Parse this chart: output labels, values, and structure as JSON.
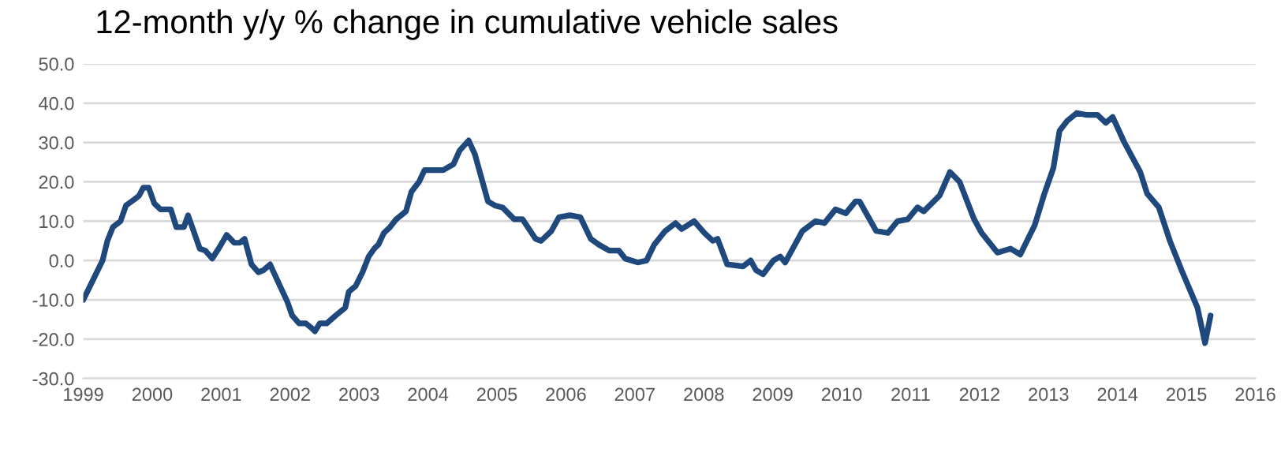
{
  "chart_data": {
    "type": "line",
    "title": "12-month y/y % change in cumulative vehicle sales",
    "x": [
      1999.0,
      1999.28,
      1999.35,
      1999.43,
      1999.54,
      1999.62,
      1999.74,
      1999.81,
      1999.87,
      1999.95,
      2000.03,
      2000.12,
      2000.27,
      2000.35,
      2000.46,
      2000.52,
      2000.69,
      2000.77,
      2000.87,
      2000.98,
      2001.08,
      2001.19,
      2001.27,
      2001.34,
      2001.44,
      2001.54,
      2001.61,
      2001.71,
      2001.84,
      2001.96,
      2002.03,
      2002.13,
      2002.23,
      2002.3,
      2002.36,
      2002.43,
      2002.53,
      2002.66,
      2002.8,
      2002.85,
      2002.95,
      2003.05,
      2003.14,
      2003.22,
      2003.28,
      2003.36,
      2003.45,
      2003.54,
      2003.68,
      2003.76,
      2003.87,
      2003.95,
      2004.22,
      2004.37,
      2004.46,
      2004.59,
      2004.68,
      2004.87,
      2004.97,
      2005.08,
      2005.25,
      2005.37,
      2005.56,
      2005.64,
      2005.79,
      2005.9,
      2006.06,
      2006.21,
      2006.36,
      2006.48,
      2006.63,
      2006.77,
      2006.86,
      2007.04,
      2007.17,
      2007.28,
      2007.44,
      2007.59,
      2007.68,
      2007.86,
      2008.01,
      2008.13,
      2008.2,
      2008.34,
      2008.57,
      2008.68,
      2008.76,
      2008.86,
      2009.01,
      2009.11,
      2009.18,
      2009.43,
      2009.62,
      2009.75,
      2009.91,
      2010.06,
      2010.2,
      2010.26,
      2010.5,
      2010.67,
      2010.81,
      2010.96,
      2011.1,
      2011.19,
      2011.42,
      2011.57,
      2011.71,
      2011.92,
      2012.03,
      2012.26,
      2012.45,
      2012.59,
      2012.8,
      2012.94,
      2013.07,
      2013.16,
      2013.27,
      2013.41,
      2013.56,
      2013.71,
      2013.83,
      2013.93,
      2014.1,
      2014.33,
      2014.43,
      2014.6,
      2014.76,
      2014.93,
      2015.16,
      2015.27,
      2015.35
    ],
    "series": [
      {
        "color": "#1f497d",
        "values": [
          -10,
          0,
          5,
          8.5,
          10,
          14,
          15.5,
          16.5,
          18.5,
          18.5,
          14.5,
          13,
          13,
          8.5,
          8.5,
          11.5,
          3,
          2.5,
          0.5,
          3.5,
          6.5,
          4.5,
          4.5,
          5.5,
          -1,
          -3,
          -2.5,
          -1,
          -6,
          -10.5,
          -14,
          -16,
          -16,
          -17,
          -18,
          -16,
          -16,
          -14,
          -12,
          -8,
          -6.5,
          -3,
          1,
          3,
          4,
          7,
          8.5,
          10.5,
          12.5,
          17.5,
          20,
          23,
          23,
          24.5,
          28,
          30.5,
          27,
          15,
          14,
          13.5,
          10.5,
          10.5,
          5.5,
          5,
          7.5,
          11,
          11.5,
          11,
          5.5,
          4,
          2.5,
          2.5,
          0.5,
          -0.5,
          0,
          4,
          7.5,
          9.5,
          8,
          10,
          7,
          5,
          5.5,
          -1,
          -1.5,
          0,
          -2.5,
          -3.5,
          0,
          1,
          -0.5,
          7.5,
          10,
          9.5,
          13,
          12,
          15,
          15,
          7.5,
          7,
          10,
          10.5,
          13.5,
          12.5,
          16.5,
          22.5,
          20,
          10.5,
          7,
          2,
          3,
          1.5,
          9,
          17,
          23.5,
          33,
          35.5,
          37.5,
          37,
          37,
          35,
          36.5,
          30,
          22.5,
          17,
          13.5,
          5,
          -2.5,
          -12,
          -21,
          -14
        ]
      }
    ],
    "xlim": [
      1999,
      2016
    ],
    "xticks": [
      1999,
      2000,
      2001,
      2002,
      2003,
      2004,
      2005,
      2006,
      2007,
      2008,
      2009,
      2010,
      2011,
      2012,
      2013,
      2014,
      2015,
      2016
    ],
    "ylim": [
      -30,
      50
    ],
    "yticks": [
      {
        "value": -30,
        "label": "-30.0"
      },
      {
        "value": -20,
        "label": "-20.0"
      },
      {
        "value": -10,
        "label": "-10.0"
      },
      {
        "value": 0,
        "label": "0.0"
      },
      {
        "value": 10,
        "label": "10.0"
      },
      {
        "value": 20,
        "label": "20.0"
      },
      {
        "value": 30,
        "label": "30.0"
      },
      {
        "value": 40,
        "label": "40.0"
      },
      {
        "value": 50,
        "label": "50.0"
      }
    ],
    "grid": "y",
    "line_style": "solid"
  }
}
